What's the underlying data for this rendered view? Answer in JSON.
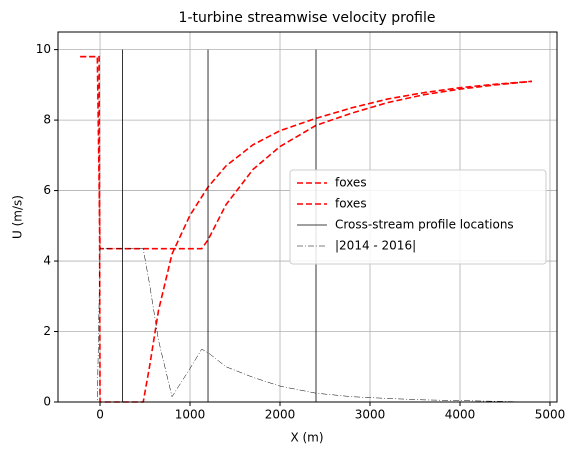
{
  "chart_data": {
    "type": "line",
    "title": "1-turbine streamwise velocity profile",
    "x_label": "X (m)",
    "y_label": "U (m/s)",
    "xlim": [
      -467,
      5078
    ],
    "ylim": [
      0,
      10.5
    ],
    "xticks": [
      0,
      1000,
      2000,
      3000,
      4000,
      5000
    ],
    "yticks": [
      0,
      2,
      4,
      6,
      8,
      10
    ],
    "grid": true,
    "legend": "center right",
    "series": [
      {
        "name": "foxes",
        "color": "#ff0000",
        "dash": "dashed",
        "x": [
          -220,
          -30,
          0,
          100,
          400,
          800,
          1130,
          1200,
          1400,
          1700,
          2000,
          2400,
          2800,
          3200,
          3600,
          4000,
          4400,
          4800
        ],
        "values": [
          9.8,
          9.8,
          4.35,
          4.35,
          4.35,
          4.35,
          4.35,
          4.6,
          5.6,
          6.6,
          7.25,
          7.85,
          8.2,
          8.5,
          8.72,
          8.88,
          9.0,
          9.1
        ]
      },
      {
        "name": "foxes",
        "color": "#ff0000",
        "dash": "dashed",
        "x": [
          -220,
          -10,
          0,
          480,
          550,
          650,
          800,
          1000,
          1200,
          1400,
          1700,
          2000,
          2400,
          2800,
          3200,
          3600,
          4000,
          4400,
          4800
        ],
        "values": [
          9.8,
          9.8,
          0,
          0,
          1.0,
          2.6,
          4.2,
          5.3,
          6.1,
          6.7,
          7.3,
          7.7,
          8.05,
          8.35,
          8.6,
          8.78,
          8.92,
          9.02,
          9.1
        ]
      },
      {
        "name": "Cross-stream profile locations",
        "color": "#000000",
        "dash": "solid",
        "kind": "vlines",
        "x": [
          250,
          1200,
          2400
        ],
        "values": [
          10,
          10,
          10
        ]
      },
      {
        "name": "|2014 - 2016|",
        "color": "#000000",
        "dash": "dashdot",
        "x": [
          -220,
          -30,
          0,
          480,
          550,
          650,
          800,
          1000,
          1130,
          1200,
          1400,
          1700,
          2000,
          2400,
          2800,
          3200,
          3600,
          4000,
          4400,
          4800
        ],
        "values": [
          0,
          0,
          4.35,
          4.35,
          3.35,
          1.75,
          0.15,
          0.95,
          1.5,
          1.4,
          1.0,
          0.7,
          0.45,
          0.25,
          0.15,
          0.1,
          0.06,
          0.04,
          0.02,
          0
        ]
      }
    ]
  }
}
